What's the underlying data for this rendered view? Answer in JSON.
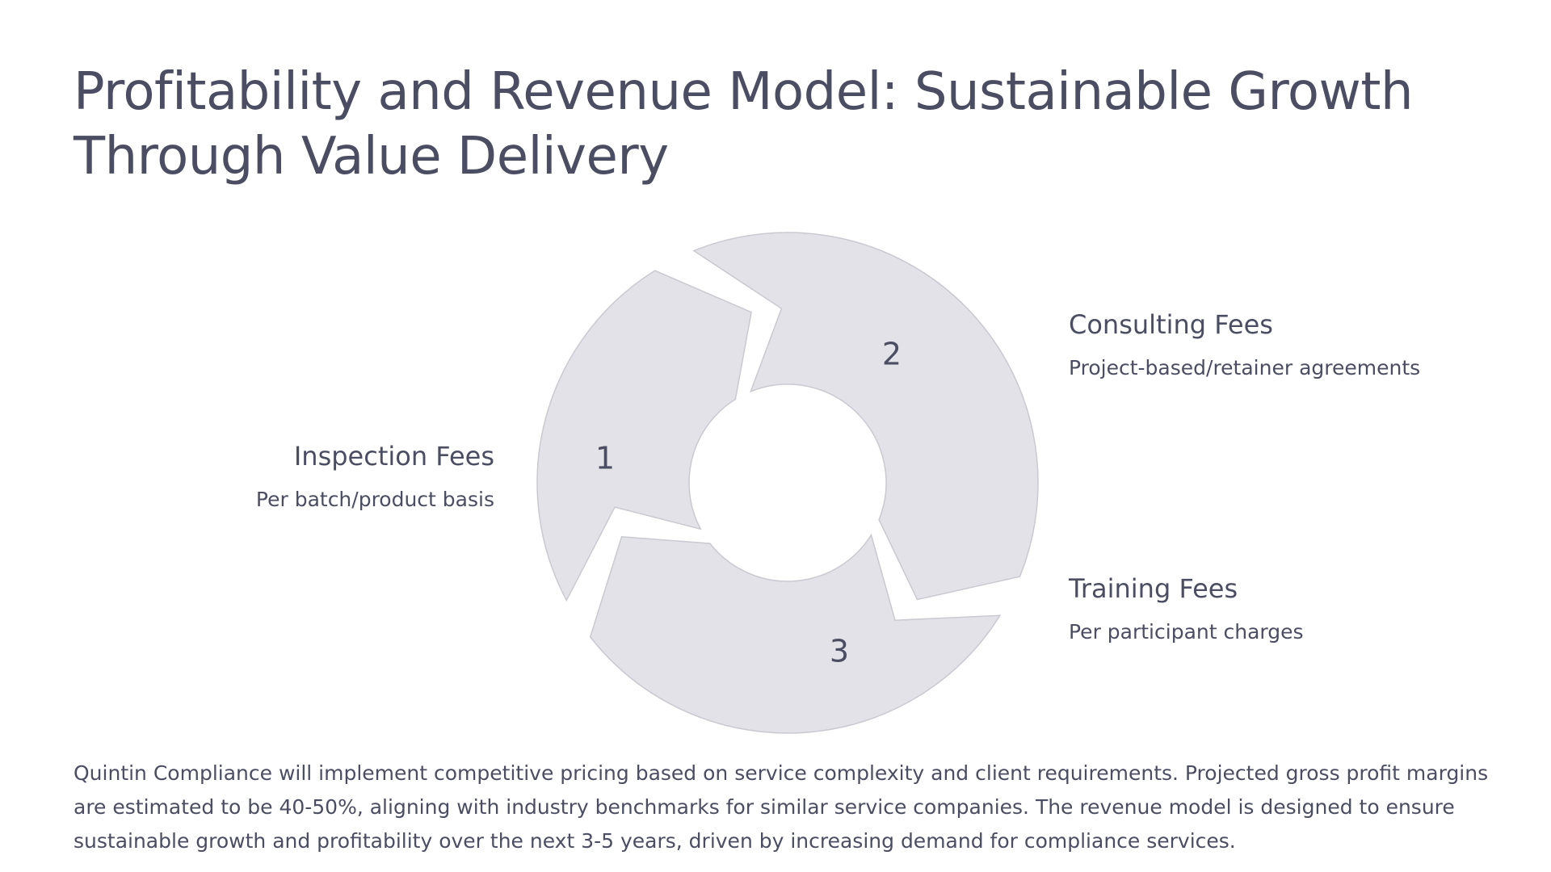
{
  "title": "Profitability and Revenue Model: Sustainable Growth Through Value Delivery",
  "segments": [
    {
      "number": "1",
      "heading": "Inspection Fees",
      "subtext": "Per batch/product basis"
    },
    {
      "number": "2",
      "heading": "Consulting Fees",
      "subtext": "Project-based/retainer agreements"
    },
    {
      "number": "3",
      "heading": "Training Fees",
      "subtext": "Per participant charges"
    }
  ],
  "description": "Quintin Compliance will implement competitive pricing based on service complexity and client requirements. Projected gross profit margins are estimated to be 40-50%, aligning with industry benchmarks for similar service companies. The revenue model is designed to ensure sustainable growth and profitability over the next 3-5 years, driven by increasing demand for compliance services.",
  "colors": {
    "segment_fill": "#e2e2e8",
    "segment_stroke": "#c9c9d2",
    "text": "#4b4e63"
  }
}
